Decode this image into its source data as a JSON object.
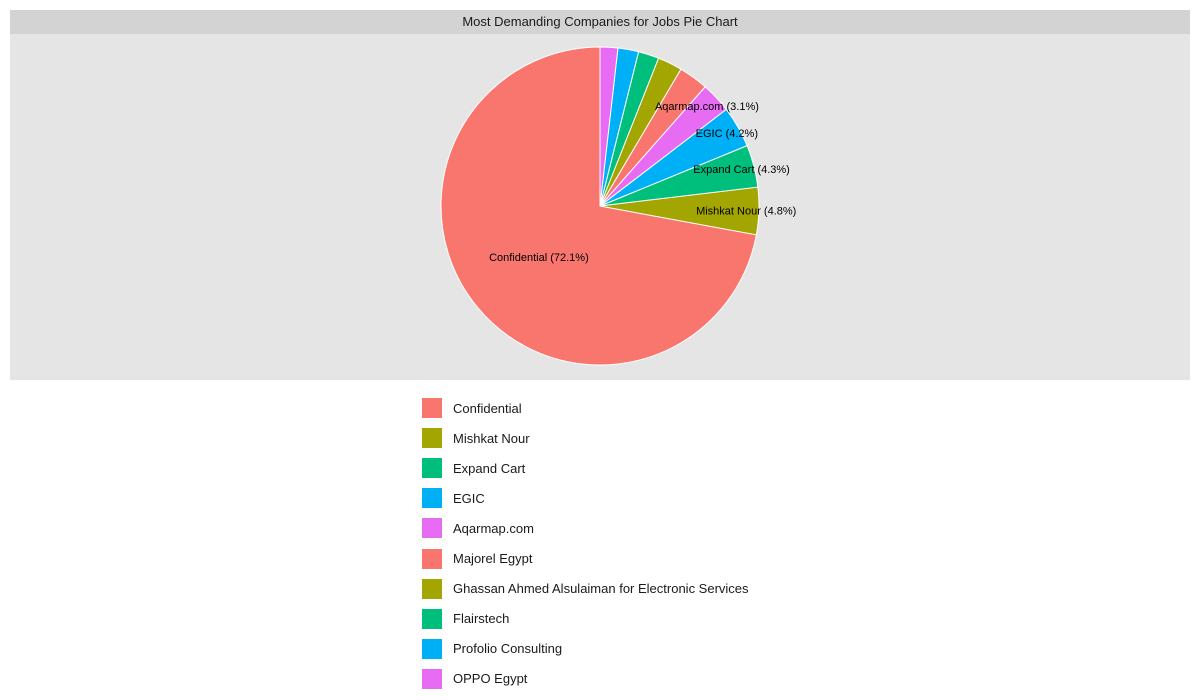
{
  "chart_data": {
    "type": "pie",
    "title": "Most Demanding Companies for Jobs Pie Chart",
    "slices": [
      {
        "label": "Confidential",
        "percent": 72.1,
        "color": "#F8766D",
        "slice_label": "Confidential (72.1%)"
      },
      {
        "label": "Mishkat Nour",
        "percent": 4.8,
        "color": "#A3A500",
        "slice_label": "Mishkat Nour (4.8%)"
      },
      {
        "label": "Expand Cart",
        "percent": 4.3,
        "color": "#00BF7D",
        "slice_label": "Expand Cart (4.3%)"
      },
      {
        "label": "EGIC",
        "percent": 4.2,
        "color": "#00B0F6",
        "slice_label": "EGIC (4.2%)"
      },
      {
        "label": "Aqarmap.com",
        "percent": 3.1,
        "color": "#E76BF3",
        "slice_label": "Aqarmap.com (3.1%)"
      },
      {
        "label": "Majorel Egypt",
        "percent": 3.0,
        "color": "#F8766D"
      },
      {
        "label": "Ghassan Ahmed Alsulaiman for Electronic Services",
        "percent": 2.5,
        "color": "#A3A500"
      },
      {
        "label": "Flairstech",
        "percent": 2.1,
        "color": "#00BF7D"
      },
      {
        "label": "Profolio Consulting",
        "percent": 2.1,
        "color": "#00B0F6"
      },
      {
        "label": "OPPO Egypt",
        "percent": 1.8,
        "color": "#E76BF3"
      }
    ],
    "legend_position": "bottom",
    "direction": "clockwise",
    "start": "top"
  }
}
